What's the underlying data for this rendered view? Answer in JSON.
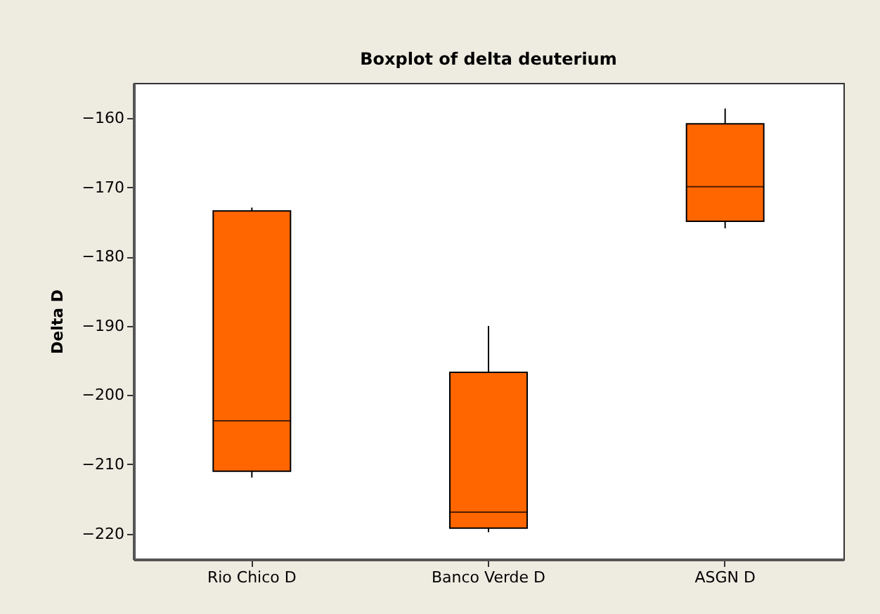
{
  "chart_data": {
    "type": "box",
    "title": "Boxplot of delta deuterium",
    "ylabel": "Delta D",
    "categories": [
      "Rio Chico D",
      "Banco Verde D",
      "ASGN D"
    ],
    "boxes": [
      {
        "low": -211.9,
        "q1": -211.0,
        "median": -203.7,
        "q3": -173.4,
        "high": -172.9
      },
      {
        "low": -219.8,
        "q1": -219.2,
        "median": -216.9,
        "q3": -196.7,
        "high": -190.0
      },
      {
        "low": -175.9,
        "q1": -174.9,
        "median": -169.9,
        "q3": -160.8,
        "high": -158.6
      }
    ],
    "color": "#ff6600",
    "ylim": [
      -223.7,
      -154.9
    ],
    "yticks": [
      -220,
      -210,
      -200,
      -190,
      -180,
      -170,
      -160
    ],
    "grid": false
  }
}
